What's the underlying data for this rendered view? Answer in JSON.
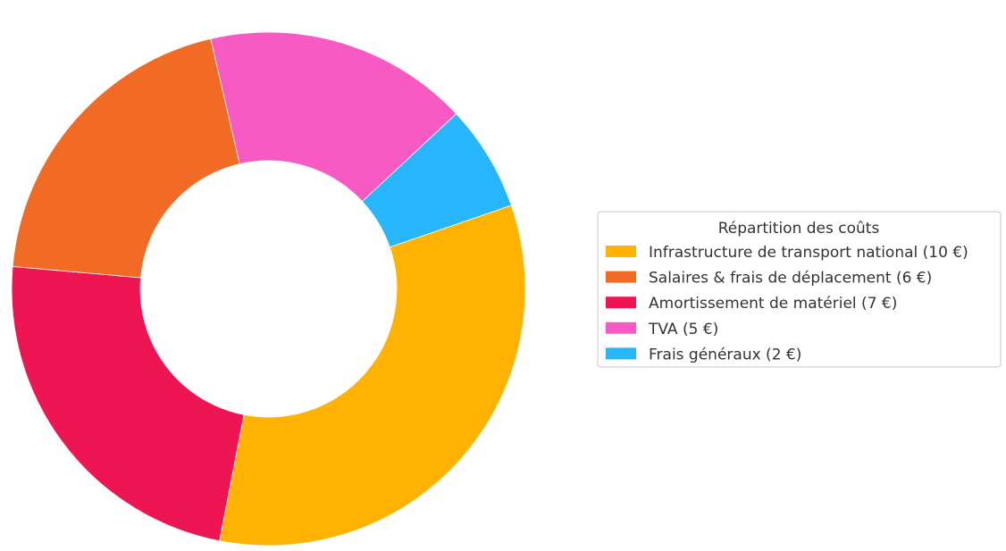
{
  "chart_data": {
    "type": "pie",
    "variant": "donut",
    "title": "",
    "legend": {
      "title": "Répartition des coûts",
      "placement": "right"
    },
    "slices": [
      {
        "label": "Infrastructure de transport national (10 €)",
        "value": 10,
        "color": "#FFB300"
      },
      {
        "label": "Salaires & frais de déplacement (6 €)",
        "value": 6,
        "color": "#F26B24"
      },
      {
        "label": "Amortissement de matériel (7 €)",
        "value": 7,
        "color": "#ED1652"
      },
      {
        "label": "TVA (5 €)",
        "value": 5,
        "color": "#F75BC3"
      },
      {
        "label": "Frais généraux (2 €)",
        "value": 2,
        "color": "#27B5FB"
      }
    ],
    "slice_order_on_chart": [
      0,
      2,
      1,
      3,
      4
    ]
  }
}
